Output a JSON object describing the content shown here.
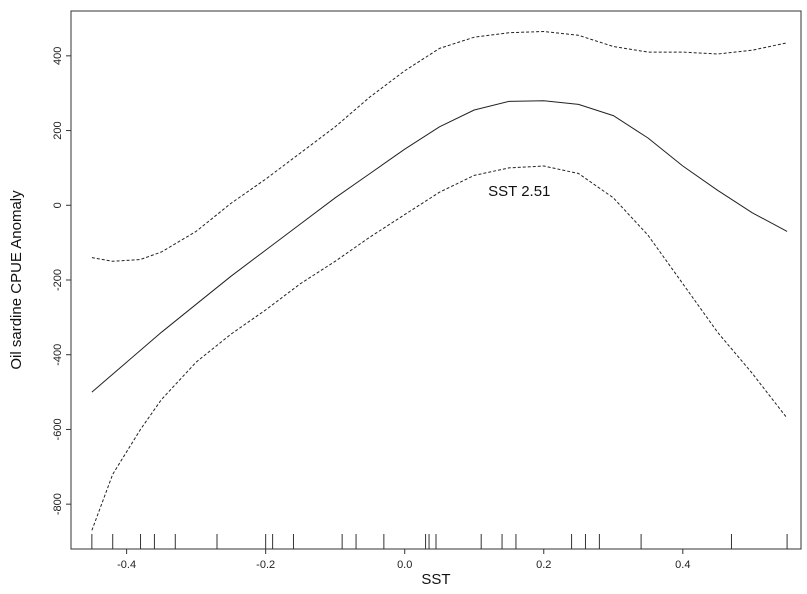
{
  "chart_data": {
    "type": "line",
    "title": "",
    "xlabel": "SST",
    "ylabel": "Oil sardine CPUE Anomaly",
    "xlim": [
      -0.48,
      0.57
    ],
    "ylim": [
      -920,
      520
    ],
    "x_ticks": [
      -0.4,
      -0.2,
      0.0,
      0.2,
      0.4
    ],
    "x_tick_labels": [
      "-0.4",
      "-0.2",
      "0.0",
      "0.2",
      "0.4"
    ],
    "y_ticks": [
      -800,
      -600,
      -400,
      -200,
      0,
      200,
      400
    ],
    "y_tick_labels": [
      "-800",
      "-600",
      "-400",
      "-200",
      "0",
      "200",
      "400"
    ],
    "grid": false,
    "annotation": {
      "text": "SST  2.51",
      "x": 0.12,
      "y": 25
    },
    "series": [
      {
        "style": "solid",
        "x": [
          -0.45,
          -0.4,
          -0.35,
          -0.3,
          -0.25,
          -0.2,
          -0.15,
          -0.1,
          -0.05,
          0.0,
          0.05,
          0.1,
          0.15,
          0.2,
          0.25,
          0.3,
          0.35,
          0.4,
          0.45,
          0.5,
          0.55
        ],
        "y": [
          -500,
          -420,
          -340,
          -265,
          -190,
          -120,
          -50,
          20,
          85,
          150,
          210,
          255,
          278,
          280,
          270,
          240,
          180,
          105,
          40,
          -20,
          -70
        ]
      },
      {
        "style": "dashed",
        "x": [
          -0.45,
          -0.42,
          -0.38,
          -0.35,
          -0.3,
          -0.25,
          -0.2,
          -0.15,
          -0.1,
          -0.05,
          0.0,
          0.05,
          0.1,
          0.15,
          0.2,
          0.25,
          0.3,
          0.35,
          0.4,
          0.45,
          0.5,
          0.55
        ],
        "y": [
          -140,
          -150,
          -145,
          -125,
          -70,
          5,
          70,
          140,
          210,
          290,
          360,
          420,
          450,
          462,
          465,
          455,
          425,
          410,
          410,
          405,
          415,
          435
        ]
      },
      {
        "style": "dashed",
        "x": [
          -0.45,
          -0.42,
          -0.38,
          -0.35,
          -0.3,
          -0.25,
          -0.2,
          -0.15,
          -0.1,
          -0.05,
          0.0,
          0.05,
          0.1,
          0.15,
          0.2,
          0.25,
          0.3,
          0.35,
          0.4,
          0.45,
          0.5,
          0.55
        ],
        "y": [
          -870,
          -720,
          -600,
          -520,
          -420,
          -345,
          -280,
          -210,
          -150,
          -85,
          -25,
          35,
          80,
          100,
          105,
          85,
          20,
          -80,
          -210,
          -340,
          -450,
          -570
        ]
      }
    ],
    "rug": [
      -0.45,
      -0.42,
      -0.38,
      -0.36,
      -0.33,
      -0.27,
      -0.2,
      -0.19,
      -0.16,
      -0.09,
      -0.07,
      -0.03,
      0.03,
      0.035,
      0.045,
      0.11,
      0.14,
      0.16,
      0.24,
      0.26,
      0.28,
      0.34,
      0.47,
      0.55
    ]
  }
}
